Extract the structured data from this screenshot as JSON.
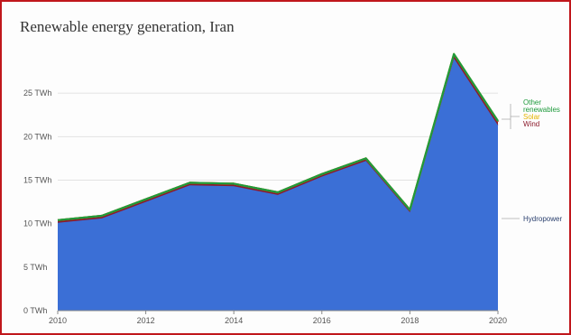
{
  "chart_data": {
    "type": "area",
    "title": "Renewable energy generation, Iran",
    "xlabel": "",
    "ylabel": "",
    "x": [
      2010,
      2011,
      2012,
      2013,
      2014,
      2015,
      2016,
      2017,
      2018,
      2019,
      2020
    ],
    "xticks": [
      2010,
      2012,
      2014,
      2016,
      2018,
      2020
    ],
    "xtick_labels": [
      "2010",
      "2012",
      "2014",
      "2016",
      "2018",
      "2020"
    ],
    "ylim": [
      0,
      30
    ],
    "yticks": [
      0,
      5,
      10,
      15,
      20,
      25
    ],
    "ytick_labels": [
      "0 TWh",
      "5 TWh",
      "10 TWh",
      "15 TWh",
      "20 TWh",
      "25 TWh"
    ],
    "grid": true,
    "legend_position": "right, inline labels",
    "series": [
      {
        "name": "Hydropower",
        "color": "#3b6fd6",
        "values": [
          10.1,
          10.6,
          12.5,
          14.4,
          14.3,
          13.3,
          15.4,
          17.2,
          11.3,
          29.0,
          21.3
        ]
      },
      {
        "name": "Wind",
        "color": "#8b1a2b",
        "values": [
          0.3,
          0.3,
          0.3,
          0.3,
          0.3,
          0.3,
          0.3,
          0.3,
          0.3,
          0.4,
          0.4
        ]
      },
      {
        "name": "Solar",
        "color": "#e3b400",
        "values": [
          0.0,
          0.0,
          0.0,
          0.0,
          0.0,
          0.0,
          0.0,
          0.0,
          0.0,
          0.1,
          0.1
        ]
      },
      {
        "name": "Other renewables",
        "color": "#1e9a3c",
        "values": [
          0.0,
          0.0,
          0.0,
          0.0,
          0.0,
          0.0,
          0.0,
          0.0,
          0.0,
          0.0,
          0.0
        ]
      }
    ],
    "legend": [
      {
        "series": "Other renewables",
        "lines": [
          "Other",
          "renewables"
        ],
        "color": "#1e9a3c"
      },
      {
        "series": "Solar",
        "lines": [
          "Solar"
        ],
        "color": "#e3b400"
      },
      {
        "series": "Wind",
        "lines": [
          "Wind"
        ],
        "color": "#8b1a2b"
      },
      {
        "series": "Hydropower",
        "lines": [
          "Hydropower"
        ],
        "color": "#2a3f6e"
      }
    ]
  }
}
